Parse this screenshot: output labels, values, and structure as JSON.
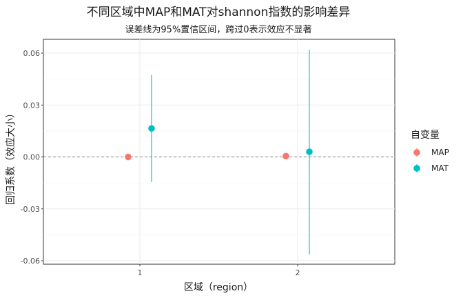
{
  "chart_data": {
    "type": "scatter",
    "title": "不同区域中MAP和MAT对shannon指数的影响差异",
    "subtitle": "误差线为95%置信区间，跨过0表示效应不显著",
    "xlabel": "区域（region）",
    "ylabel": "回归系数（效应大小）",
    "categories": [
      "1",
      "2"
    ],
    "yticks": [
      -0.06,
      -0.03,
      0.0,
      0.03,
      0.06
    ],
    "ytick_labels": [
      "-0.06",
      "-0.03",
      "0.00",
      "0.03",
      "0.06"
    ],
    "ylim": [
      -0.062,
      0.068
    ],
    "reference_line": 0,
    "grid": true,
    "legend_title": "自变量",
    "legend_position": "right",
    "series": [
      {
        "name": "MAP",
        "color": "#F8766D",
        "points": [
          {
            "x": "1",
            "y": 0.0,
            "lower": 0.0,
            "upper": 0.0
          },
          {
            "x": "2",
            "y": 0.0005,
            "lower": 0.0005,
            "upper": 0.0005
          }
        ]
      },
      {
        "name": "MAT",
        "color": "#00BFC4",
        "points": [
          {
            "x": "1",
            "y": 0.0165,
            "lower": -0.0145,
            "upper": 0.0475
          },
          {
            "x": "2",
            "y": 0.003,
            "lower": -0.0565,
            "upper": 0.062
          }
        ]
      }
    ]
  }
}
